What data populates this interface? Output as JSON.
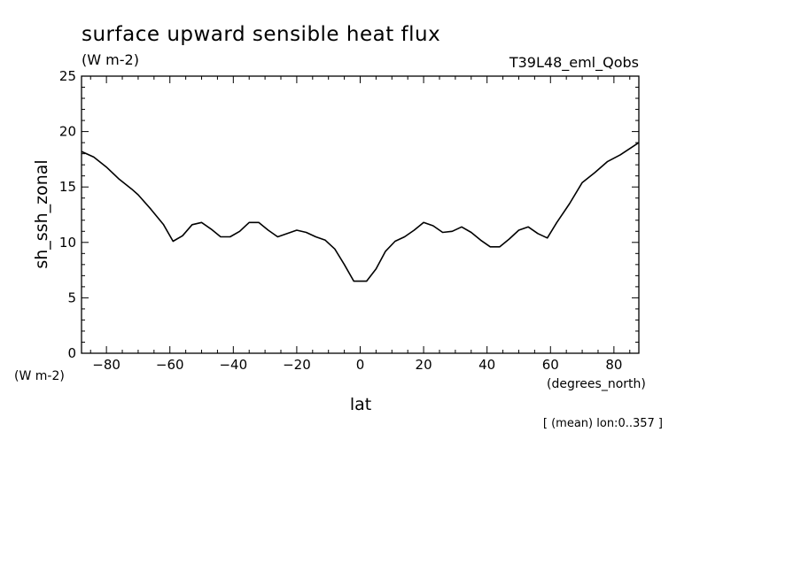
{
  "chart_data": {
    "type": "line",
    "title": "surface upward sensible heat flux",
    "units": "(W m-2)",
    "experiment": "T39L48_eml_Qobs",
    "ylabel": "sh_ssh_zonal",
    "ylabel_units": "(W m-2)",
    "xlabel": "lat",
    "xlabel_units": "(degrees_north)",
    "footnote": "[ (mean) lon:0..357 ]",
    "xlim": [
      -87.86,
      87.86
    ],
    "ylim": [
      0,
      25
    ],
    "xticks": [
      -80,
      -60,
      -40,
      -20,
      0,
      20,
      40,
      60,
      80
    ],
    "xtick_labels": [
      "-80",
      "-60",
      "-40",
      "-20",
      "0",
      "20",
      "40",
      "60",
      "80"
    ],
    "yticks": [
      0,
      5,
      10,
      15,
      20,
      25
    ],
    "ytick_labels": [
      "0",
      "5",
      "10",
      "15",
      "20",
      "25"
    ],
    "grid": false,
    "x": [
      -87.86,
      -84.0,
      -80.0,
      -76.0,
      -72.0,
      -70.0,
      -66.0,
      -62.0,
      -59.0,
      -56.0,
      -53.0,
      -50.0,
      -47.0,
      -44.0,
      -41.0,
      -38.0,
      -35.0,
      -32.0,
      -29.0,
      -26.0,
      -23.0,
      -20.0,
      -17.0,
      -14.0,
      -11.0,
      -8.0,
      -5.0,
      -2.0,
      0.0,
      2.0,
      5.0,
      8.0,
      11.0,
      14.0,
      17.0,
      20.0,
      23.0,
      26.0,
      29.0,
      32.0,
      35.0,
      38.0,
      41.0,
      44.0,
      47.0,
      50.0,
      53.0,
      56.0,
      59.0,
      62.0,
      66.0,
      70.0,
      74.0,
      78.0,
      82.0,
      87.86
    ],
    "values": [
      18.2,
      17.7,
      16.8,
      15.7,
      14.8,
      14.3,
      13.0,
      11.6,
      10.1,
      10.6,
      11.6,
      11.8,
      11.2,
      10.5,
      10.5,
      11.0,
      11.8,
      11.8,
      11.1,
      10.5,
      10.8,
      11.1,
      10.9,
      10.5,
      10.2,
      9.4,
      8.0,
      6.5,
      6.5,
      6.5,
      7.6,
      9.2,
      10.1,
      10.5,
      11.1,
      11.8,
      11.5,
      10.9,
      11.0,
      11.4,
      10.9,
      10.2,
      9.6,
      9.6,
      10.3,
      11.1,
      11.4,
      10.8,
      10.4,
      11.8,
      13.5,
      15.4,
      16.3,
      17.3,
      17.9,
      19.0
    ]
  }
}
